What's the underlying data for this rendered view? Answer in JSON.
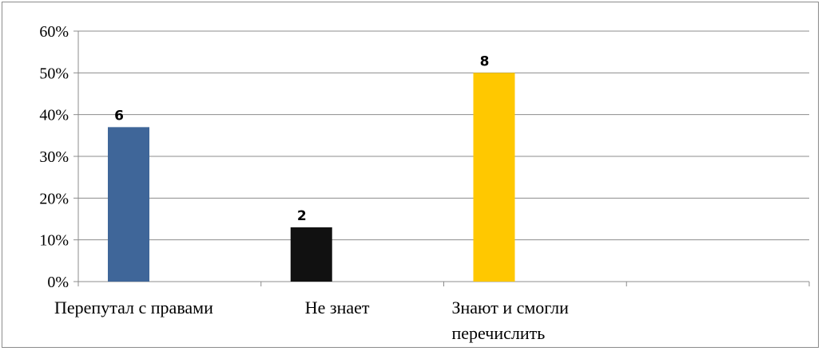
{
  "chart_data": {
    "type": "bar",
    "categories": [
      [
        "Перепутал с правами"
      ],
      [
        "Не знает"
      ],
      [
        "Знают и смогли",
        "перечислить"
      ],
      [
        ""
      ]
    ],
    "values": [
      37,
      13,
      50,
      null
    ],
    "data_labels": [
      "6",
      "2",
      "8",
      ""
    ],
    "bar_colors": [
      "#3F6699",
      "#111111",
      "#FFC800",
      ""
    ],
    "ylim": [
      0,
      60
    ],
    "yticks": [
      "0%",
      "10%",
      "20%",
      "30%",
      "40%",
      "50%",
      "60%"
    ],
    "grid": true,
    "legend": "none",
    "title": "",
    "xlabel": "",
    "ylabel": ""
  }
}
